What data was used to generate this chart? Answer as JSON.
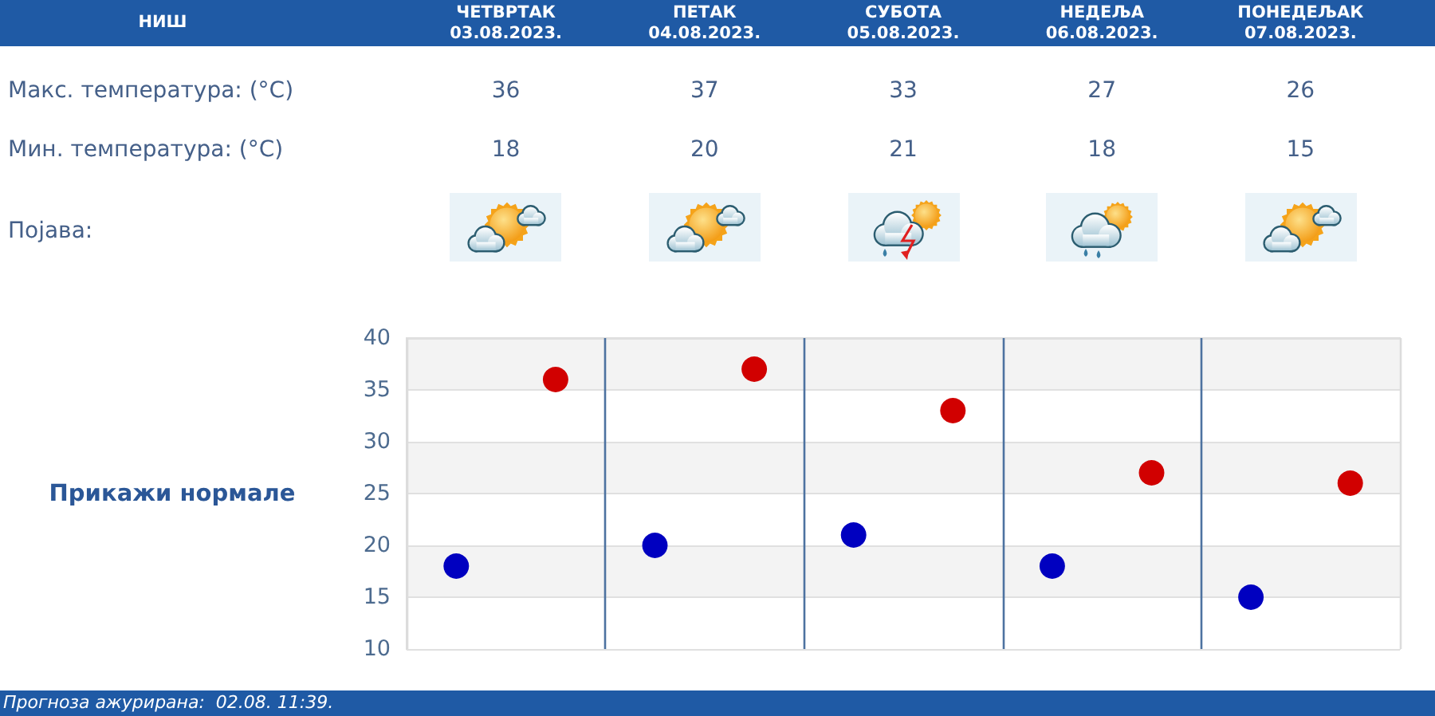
{
  "chart_data": {
    "type": "scatter",
    "title": "НИШ",
    "categories": [
      null,
      null,
      null,
      null,
      null
    ],
    "series": [
      {
        "color": "#d10000",
        "values": [
          36,
          37,
          33,
          27,
          26
        ]
      },
      {
        "color": "#0000c0",
        "values": [
          18,
          20,
          21,
          18,
          15
        ]
      }
    ],
    "ylim": [
      10,
      40
    ],
    "yticks": [
      10,
      15,
      20,
      25,
      30,
      35,
      40
    ],
    "grid": true,
    "marker": "circle",
    "data_labels": true,
    "annotations": [
      "ЧЕТВРТАК\n03.08.2023.",
      "ПЕТАК\n04.08.2023.",
      "СУБОТА\n05.08.2023.",
      "НЕДЕЉА\n06.08.2023.",
      "ПОНЕДЕЉАК\n07.08.2023.",
      "Макс. температура: (°C)",
      "Мин. температура: (°C)",
      "Појава:",
      "Прикажи нормале",
      "Прогноза ажурирана:  02.08. 11:39."
    ]
  }
}
